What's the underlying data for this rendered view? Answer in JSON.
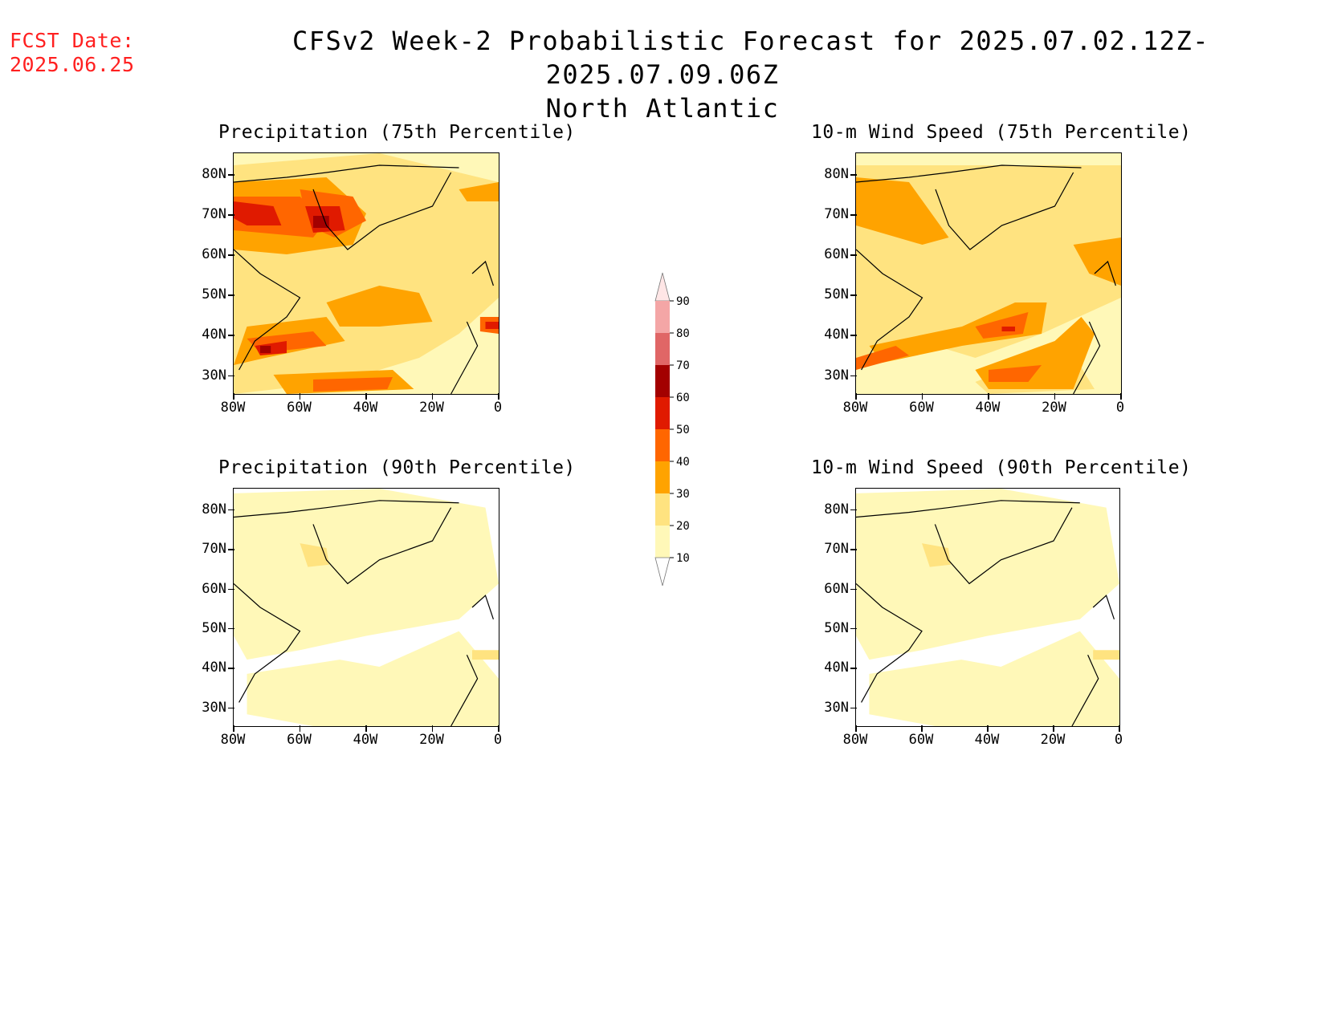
{
  "header": {
    "fcst_label": "FCST Date:",
    "fcst_date": "2025.06.25",
    "title": "CFSv2 Week-2 Probabilistic Forecast for 2025.07.02.12Z-2025.07.09.06Z",
    "subtitle": "North Atlantic"
  },
  "axes": {
    "lat_labels": [
      "80N",
      "70N",
      "60N",
      "50N",
      "40N",
      "30N"
    ],
    "lon_labels": [
      "80W",
      "60W",
      "40W",
      "20W",
      "0"
    ]
  },
  "panels": [
    {
      "id": "precip75",
      "title": "Precipitation (75th Percentile)",
      "intensity": "high"
    },
    {
      "id": "wind75",
      "title": "10-m Wind Speed (75th Percentile)",
      "intensity": "medium"
    },
    {
      "id": "precip90",
      "title": "Precipitation (90th Percentile)",
      "intensity": "low"
    },
    {
      "id": "wind90",
      "title": "10-m Wind Speed (90th Percentile)",
      "intensity": "low"
    }
  ],
  "colorbar": {
    "labels": [
      "90",
      "80",
      "70",
      "60",
      "50",
      "40",
      "30",
      "20",
      "10"
    ],
    "colors": [
      "#ffe6e6",
      "#f4a6a6",
      "#e06666",
      "#a30000",
      "#e01a00",
      "#ff6600",
      "#ffa300",
      "#ffe380",
      "#fff8b8"
    ]
  },
  "chart_data": {
    "type": "heatmap",
    "units": "probability (%)",
    "levels": [
      10,
      20,
      30,
      40,
      50,
      60,
      70,
      80,
      90
    ],
    "lat_range": [
      25,
      85
    ],
    "lon_range": [
      -80,
      0
    ]
  }
}
